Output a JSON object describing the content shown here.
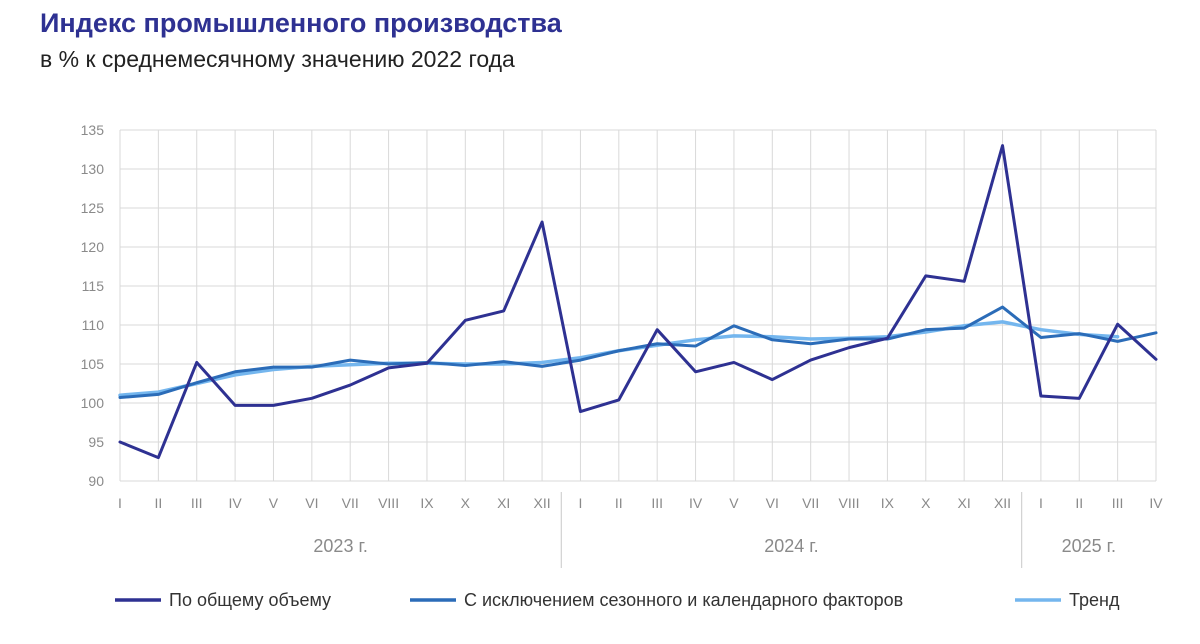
{
  "header": {
    "title": "Индекс промышленного производства",
    "subtitle": "в % к среднемесячному значению 2022 года"
  },
  "colors": {
    "total": "#2e3192",
    "seasonal": "#2b6cb8",
    "trend": "#74b6ee",
    "grid": "#d9d9d9",
    "tick": "#8a8a8a"
  },
  "chart_data": {
    "type": "line",
    "title": "Индекс промышленного производства",
    "subtitle": "в % к среднемесячному значению 2022 года",
    "categories": [
      "I",
      "II",
      "III",
      "IV",
      "V",
      "VI",
      "VII",
      "VIII",
      "IX",
      "X",
      "XI",
      "XII",
      "I",
      "II",
      "III",
      "IV",
      "V",
      "VI",
      "VII",
      "VIII",
      "IX",
      "X",
      "XI",
      "XII",
      "I",
      "II",
      "III",
      "IV"
    ],
    "year_groups": [
      {
        "label": "2023 г.",
        "start": 0,
        "end": 11
      },
      {
        "label": "2024 г.",
        "start": 12,
        "end": 23
      },
      {
        "label": "2025 г.",
        "start": 24,
        "end": 27
      }
    ],
    "ylim": [
      90,
      135
    ],
    "yticks": [
      90,
      95,
      100,
      105,
      110,
      115,
      120,
      125,
      130,
      135
    ],
    "grid": true,
    "legend_position": "bottom",
    "series": [
      {
        "name": "По общему объему",
        "key": "total",
        "values": [
          95.0,
          93.0,
          105.2,
          99.7,
          99.7,
          100.6,
          102.3,
          104.5,
          105.1,
          110.6,
          111.8,
          123.2,
          98.9,
          100.4,
          109.4,
          104.0,
          105.2,
          103.0,
          105.5,
          107.1,
          108.3,
          116.3,
          115.6,
          133.0,
          100.9,
          100.6,
          110.1,
          105.6
        ]
      },
      {
        "name": "С исключением сезонного и календарного факторов",
        "key": "seasonal",
        "values": [
          100.7,
          101.1,
          102.6,
          104.0,
          104.6,
          104.6,
          105.5,
          105.0,
          105.2,
          104.8,
          105.3,
          104.7,
          105.5,
          106.7,
          107.6,
          107.3,
          109.9,
          108.1,
          107.6,
          108.2,
          108.2,
          109.4,
          109.6,
          112.3,
          108.4,
          108.9,
          107.9,
          109.0
        ]
      },
      {
        "name": "Тренд",
        "key": "trend",
        "values": [
          101.0,
          101.4,
          102.5,
          103.6,
          104.3,
          104.7,
          104.9,
          105.1,
          105.1,
          105.0,
          105.0,
          105.2,
          105.8,
          106.7,
          107.4,
          108.1,
          108.6,
          108.5,
          108.2,
          108.3,
          108.5,
          109.1,
          109.9,
          110.4,
          109.4,
          108.8,
          108.5,
          null
        ]
      }
    ]
  }
}
